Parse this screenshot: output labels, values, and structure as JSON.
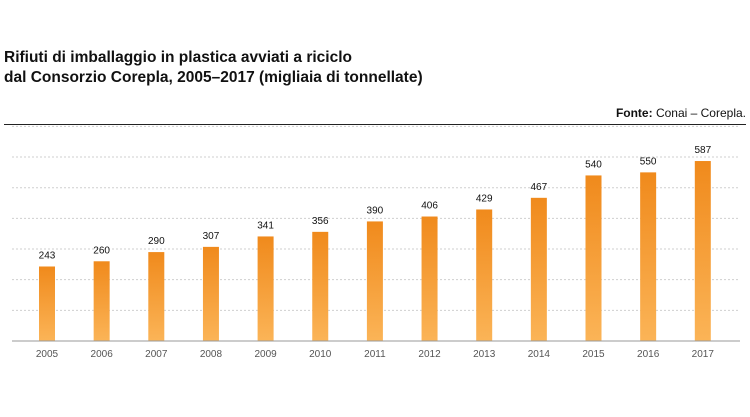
{
  "chart_data": {
    "type": "bar",
    "title_line1": "Rifiuti di imballaggio in plastica avviati a riciclo",
    "title_line2": "dal Consorzio Corepla, 2005–2017 (migliaia di tonnellate)",
    "source_label": "Fonte:",
    "source_text": "Conai – Corepla.",
    "categories": [
      "2005",
      "2006",
      "2007",
      "2008",
      "2009",
      "2010",
      "2011",
      "2012",
      "2013",
      "2014",
      "2015",
      "2016",
      "2017"
    ],
    "values": [
      243,
      260,
      290,
      307,
      341,
      356,
      390,
      406,
      429,
      467,
      540,
      550,
      587
    ],
    "xlabel": "",
    "ylabel": "",
    "ylim": [
      0,
      650
    ],
    "grid": true,
    "legend": "none",
    "colors": {
      "bar_top": "#f08a1c",
      "bar_bottom": "#fbb457",
      "grid": "#cfcfcf"
    }
  }
}
